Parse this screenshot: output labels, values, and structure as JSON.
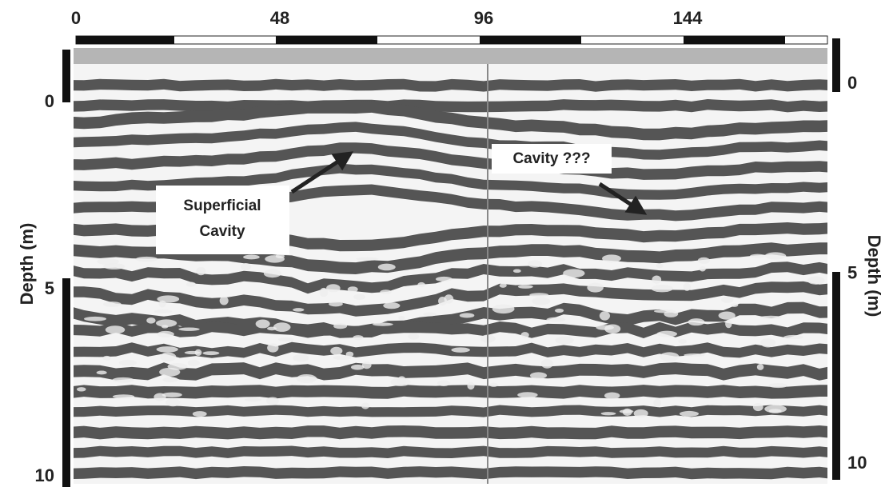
{
  "top_axis": {
    "ticks": [
      0,
      48,
      96,
      144
    ]
  },
  "left_axis": {
    "label": "Depth (m)",
    "ticks": [
      0,
      5,
      10
    ]
  },
  "right_axis": {
    "label": "Depth (m)",
    "ticks": [
      0,
      5,
      10
    ]
  },
  "annotations": [
    {
      "lines": [
        "Superficial",
        "Cavity"
      ]
    },
    {
      "lines": [
        "Cavity ???"
      ]
    }
  ]
}
